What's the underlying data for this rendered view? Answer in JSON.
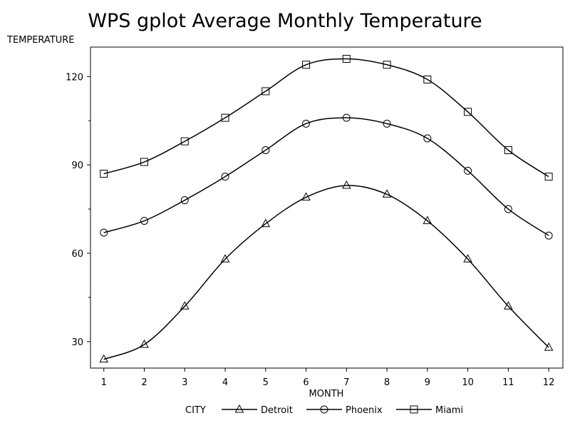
{
  "chart_data": {
    "type": "line",
    "title": "WPS gplot Average Monthly Temperature",
    "xlabel": "MONTH",
    "ylabel": "TEMPERATURE",
    "x": [
      1,
      2,
      3,
      4,
      5,
      6,
      7,
      8,
      9,
      10,
      11,
      12
    ],
    "xlim": [
      0.67,
      12.35
    ],
    "ylim": [
      21,
      130
    ],
    "y_ticks": [
      30,
      60,
      90,
      120
    ],
    "y_minor_ticks": [
      45,
      75,
      105
    ],
    "legend_title": "CITY",
    "legend_position": "bottom",
    "grid": false,
    "smooth": true,
    "series": [
      {
        "name": "Detroit",
        "marker": "triangle",
        "values": [
          24,
          29,
          42,
          58,
          70,
          79,
          83,
          80,
          71,
          58,
          42,
          28
        ]
      },
      {
        "name": "Phoenix",
        "marker": "circle",
        "values": [
          67,
          71,
          78,
          86,
          95,
          104,
          106,
          104,
          99,
          88,
          75,
          66
        ]
      },
      {
        "name": "Miami",
        "marker": "square",
        "values": [
          87,
          91,
          98,
          106,
          115,
          124,
          126,
          124,
          119,
          108,
          95,
          86
        ]
      }
    ]
  }
}
